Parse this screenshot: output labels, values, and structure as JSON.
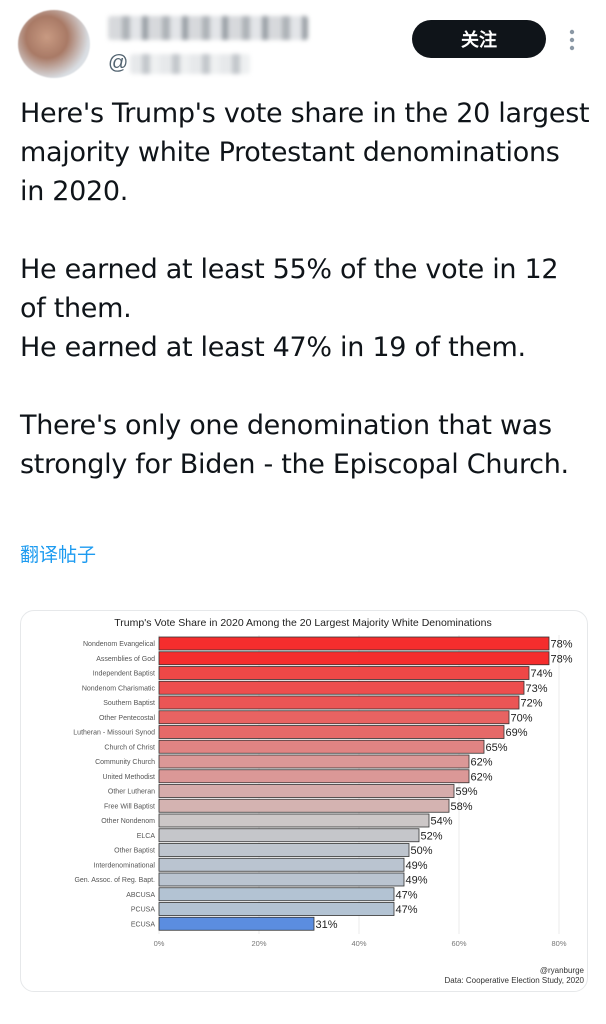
{
  "header": {
    "handle_prefix": "@",
    "follow_label": "关注"
  },
  "tweet": {
    "text": "Here's Trump's vote share in the 20 largest majority white Protestant denominations in 2020.\n\nHe earned at least 55% of the vote in 12 of them.\nHe earned at least 47% in 19 of them.\n\nThere's only one denomination that was strongly for Biden - the Episcopal Church.",
    "translate_label": "翻译帖子"
  },
  "chart_data": {
    "type": "bar",
    "orientation": "horizontal",
    "title": "Trump's Vote Share in 2020 Among the 20 Largest Majority White Denominations",
    "categories": [
      "Nondenom Evangelical",
      "Assemblies of God",
      "Independent Baptist",
      "Nondenom Charismatic",
      "Southern Baptist",
      "Other Pentecostal",
      "Lutheran - Missouri Synod",
      "Church of Christ",
      "Community Church",
      "United Methodist",
      "Other Lutheran",
      "Free Will Baptist",
      "Other Nondenom",
      "ELCA",
      "Other Baptist",
      "Interdenominational",
      "Gen. Assoc. of Reg. Bapt.",
      "ABCUSA",
      "PCUSA",
      "ECUSA"
    ],
    "values": [
      78,
      78,
      74,
      73,
      72,
      70,
      69,
      65,
      62,
      62,
      59,
      58,
      54,
      52,
      50,
      49,
      49,
      47,
      47,
      31
    ],
    "value_labels": [
      "78%",
      "78%",
      "74%",
      "73%",
      "72%",
      "70%",
      "69%",
      "65%",
      "62%",
      "62%",
      "59%",
      "58%",
      "54%",
      "52%",
      "50%",
      "49%",
      "49%",
      "47%",
      "47%",
      "31%"
    ],
    "xlim": [
      0,
      80
    ],
    "xticks": [
      "0%",
      "20%",
      "40%",
      "60%",
      "80%"
    ],
    "grid": true,
    "legend": "none",
    "credit": "@ryanburge",
    "source": "Data: Cooperative Election Study, 2020",
    "colors": {
      "high": "#f52d2d",
      "mid": "#cfc7c5",
      "low": "#b3c3d3",
      "ecusa": "#5b8de0"
    }
  }
}
